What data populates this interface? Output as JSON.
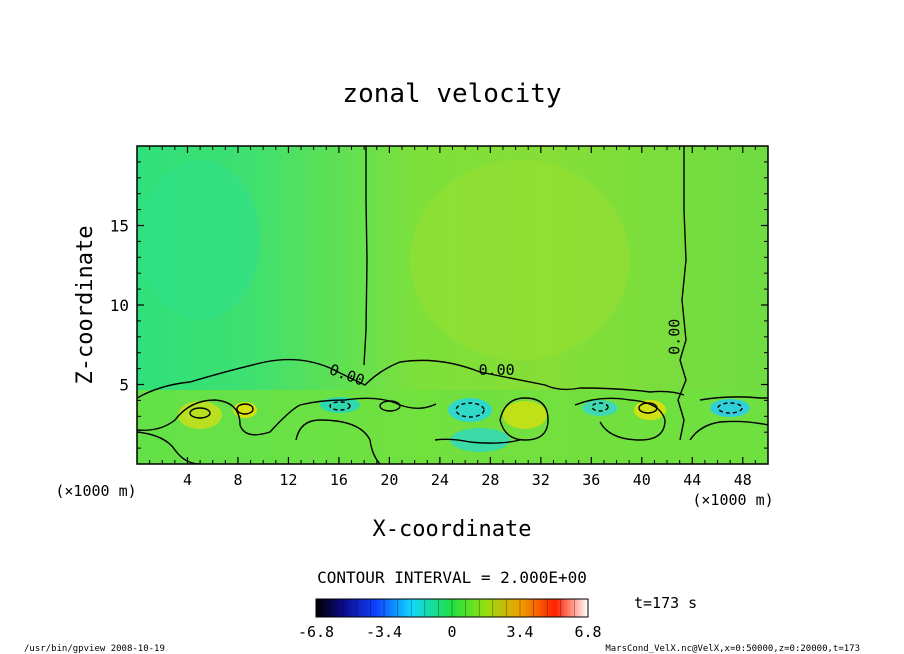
{
  "chart_data": {
    "type": "heatmap",
    "title": "zonal velocity",
    "xlabel": "X-coordinate",
    "ylabel": "Z-coordinate",
    "x_unit": "(×1000 m)",
    "y_unit": "(×1000 m)",
    "xlim": [
      0,
      50
    ],
    "ylim": [
      0,
      20
    ],
    "x_ticks": [
      "4",
      "8",
      "12",
      "16",
      "20",
      "24",
      "28",
      "32",
      "36",
      "40",
      "44",
      "48"
    ],
    "y_ticks": [
      "5",
      "10",
      "15"
    ],
    "x_tick_values": [
      4,
      8,
      12,
      16,
      20,
      24,
      28,
      32,
      36,
      40,
      44,
      48
    ],
    "y_tick_values": [
      5,
      10,
      15
    ],
    "contour_labels": [
      {
        "text": "0.00",
        "x": 16.5,
        "z": 5.3
      },
      {
        "text": "0.00",
        "x": 28.5,
        "z": 5.6
      },
      {
        "text": "0.00",
        "x": 43.0,
        "z": 8.0
      }
    ],
    "contour_interval": "CONTOUR INTERVAL = 2.000E+00",
    "time_label": "t=173 s",
    "colorbar": {
      "min": -6.8,
      "max": 6.8,
      "tick_labels": [
        "-6.8",
        "-3.4",
        "0",
        "3.4",
        "6.8"
      ],
      "tick_values": [
        -6.8,
        -3.4,
        0,
        3.4,
        6.8
      ]
    }
  },
  "footer": {
    "left": "/usr/bin/gpview   2008-10-19",
    "right": "MarsCond_VelX.nc@VelX,x=0:50000,z=0:20000,t=173"
  }
}
